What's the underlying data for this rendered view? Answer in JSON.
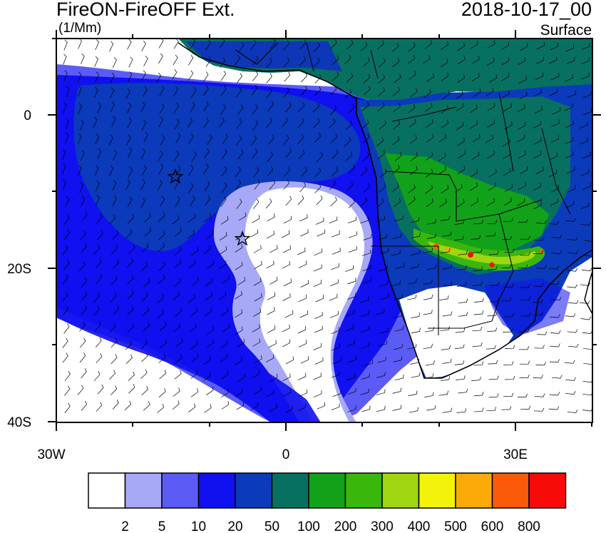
{
  "header": {
    "title": "FireON-FireOFF Ext.",
    "units": "(1/Mm)",
    "datetime": "2018-10-17_00",
    "level": "Surface"
  },
  "axes": {
    "lat_labels": [
      "0",
      "20S",
      "40S"
    ],
    "lon_labels": [
      "30W",
      "0",
      "30E"
    ]
  },
  "colorbar": {
    "labels": [
      "2",
      "5",
      "10",
      "20",
      "50",
      "100",
      "200",
      "300",
      "400",
      "500",
      "600",
      "800"
    ],
    "colors": [
      "#ffffff",
      "#a7a9f7",
      "#5a5cf5",
      "#1010f0",
      "#0b3aba",
      "#087060",
      "#11a21a",
      "#3ab70d",
      "#a0d60f",
      "#f2f20a",
      "#fbaa08",
      "#fb5a08",
      "#f70a08"
    ]
  },
  "map": {
    "markers": [
      "star",
      "star"
    ],
    "ocean_color": "#ffffff",
    "coastline_color": "#000000"
  }
}
